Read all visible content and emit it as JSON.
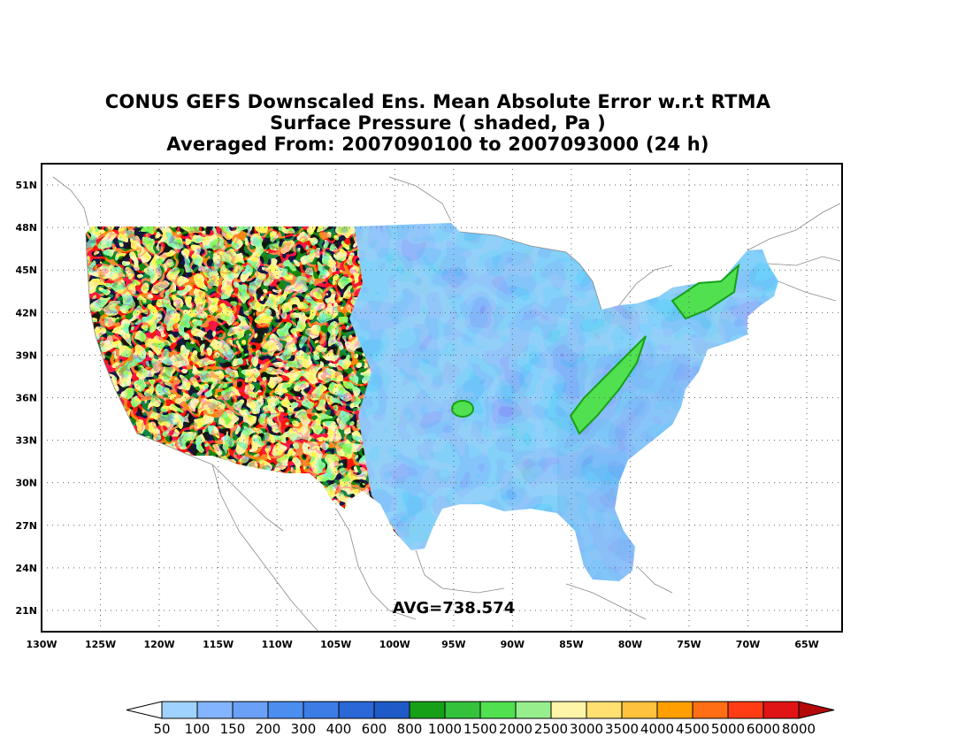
{
  "title": {
    "line1": "CONUS GEFS Downscaled Ens. Mean Absolute Error w.r.t RTMA",
    "line2": "Surface Pressure ( shaded, Pa )",
    "line3": "Averaged From: 2007090100 to 2007093000 (24 h)"
  },
  "map": {
    "lon_range": [
      -130,
      -62
    ],
    "lat_range": [
      19.5,
      52.5
    ],
    "lon_ticks": [
      "130W",
      "125W",
      "120W",
      "115W",
      "110W",
      "105W",
      "100W",
      "95W",
      "90W",
      "85W",
      "80W",
      "75W",
      "70W",
      "65W"
    ],
    "lat_ticks": [
      "51N",
      "48N",
      "45N",
      "42N",
      "39N",
      "36N",
      "33N",
      "30N",
      "27N",
      "24N",
      "21N"
    ],
    "annotation": "AVG=738.574"
  },
  "colorbar": {
    "labels": [
      "50",
      "100",
      "150",
      "200",
      "300",
      "400",
      "600",
      "800",
      "1000",
      "1500",
      "2000",
      "2500",
      "3000",
      "3500",
      "4000",
      "4500",
      "5000",
      "6000",
      "8000"
    ],
    "colors": [
      "#ffffff",
      "#a0d2ff",
      "#82b4ff",
      "#6aa0f5",
      "#4b8ef0",
      "#3c7ce6",
      "#2a68d8",
      "#1e5ac8",
      "#16a018",
      "#34c23c",
      "#50e050",
      "#96ef8c",
      "#fff5a8",
      "#ffe070",
      "#ffc23c",
      "#ffa000",
      "#ff6e14",
      "#ff3c14",
      "#e01414",
      "#b40a0a"
    ]
  }
}
